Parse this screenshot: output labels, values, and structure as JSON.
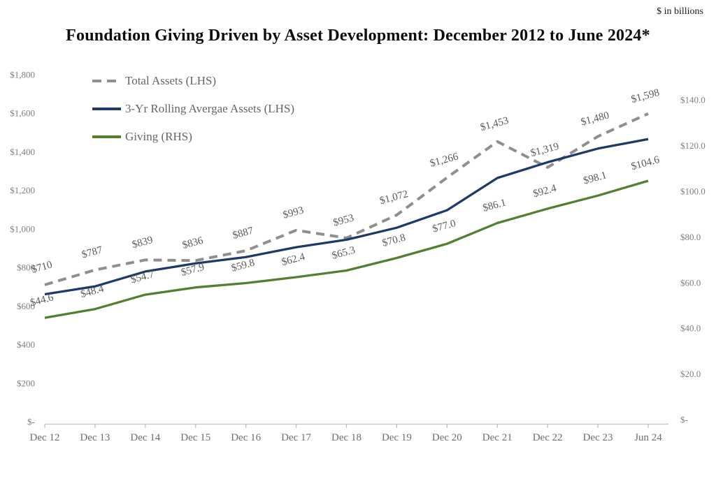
{
  "chart_data": {
    "type": "line",
    "title": "Foundation Giving Driven by Asset Development: December 2012 to June 2024*",
    "units_note": "$ in billions",
    "categories": [
      "Dec 12",
      "Dec 13",
      "Dec 14",
      "Dec 15",
      "Dec 16",
      "Dec 17",
      "Dec 18",
      "Dec 19",
      "Dec 20",
      "Dec 21",
      "Dec 22",
      "Dec 23",
      "Jun 24"
    ],
    "legend_position": "top-left-inside",
    "grid": "off",
    "series": [
      {
        "name": "Total Assets (LHS)",
        "axis": "left",
        "style": "dashed",
        "color": "#8f8f8f",
        "values": [
          710,
          787,
          839,
          836,
          887,
          993,
          953,
          1072,
          1266,
          1453,
          1319,
          1480,
          1598
        ],
        "point_labels": [
          "$710",
          "$787",
          "$839",
          "$836",
          "$887",
          "$993",
          "$953",
          "$1,072",
          "$1,266",
          "$1,453",
          "$1,319",
          "$1,480",
          "$1,598"
        ]
      },
      {
        "name": "3-Yr Rolling Avergae Assets (LHS)",
        "axis": "left",
        "style": "solid",
        "color": "#1e3a66",
        "values": [
          661,
          702,
          779,
          821,
          854,
          905,
          944,
          1006,
          1097,
          1264,
          1346,
          1417,
          1466
        ],
        "point_labels": null
      },
      {
        "name": "Giving (RHS)",
        "axis": "right",
        "style": "solid",
        "color": "#53802f",
        "values": [
          44.6,
          48.4,
          54.7,
          57.9,
          59.8,
          62.4,
          65.3,
          70.8,
          77.0,
          86.1,
          92.4,
          98.1,
          104.6
        ],
        "point_labels": [
          "$44.6",
          "$48.4",
          "$54.7",
          "$57.9",
          "$59.8",
          "$62.4",
          "$65.3",
          "$70.8",
          "$77.0",
          "$86.1",
          "$92.4",
          "$98.1",
          "$104.6"
        ]
      }
    ],
    "left_axis": {
      "min": 0,
      "max": 1800,
      "tick_values": [
        0,
        200,
        400,
        600,
        800,
        1000,
        1200,
        1400,
        1600,
        1800
      ],
      "tick_labels": [
        "$-",
        "$200",
        "$400",
        "$600",
        "$800",
        "$1,000",
        "$1,200",
        "$1,400",
        "$1,600",
        "$1,800"
      ]
    },
    "right_axis": {
      "min": 0,
      "max": 150,
      "tick_values": [
        0,
        20,
        40,
        60,
        80,
        100,
        120,
        140
      ],
      "tick_labels": [
        "$-",
        "$20.0",
        "$40.0",
        "$60.0",
        "$80.0",
        "$100.0",
        "$120.0",
        "$140.0"
      ]
    },
    "colors": {
      "axis_line": "#bfbfbf",
      "axis_tick_text": "#7f7f7f",
      "x_tick_text": "#6e6e6e",
      "data_label_text": "#595959"
    }
  }
}
